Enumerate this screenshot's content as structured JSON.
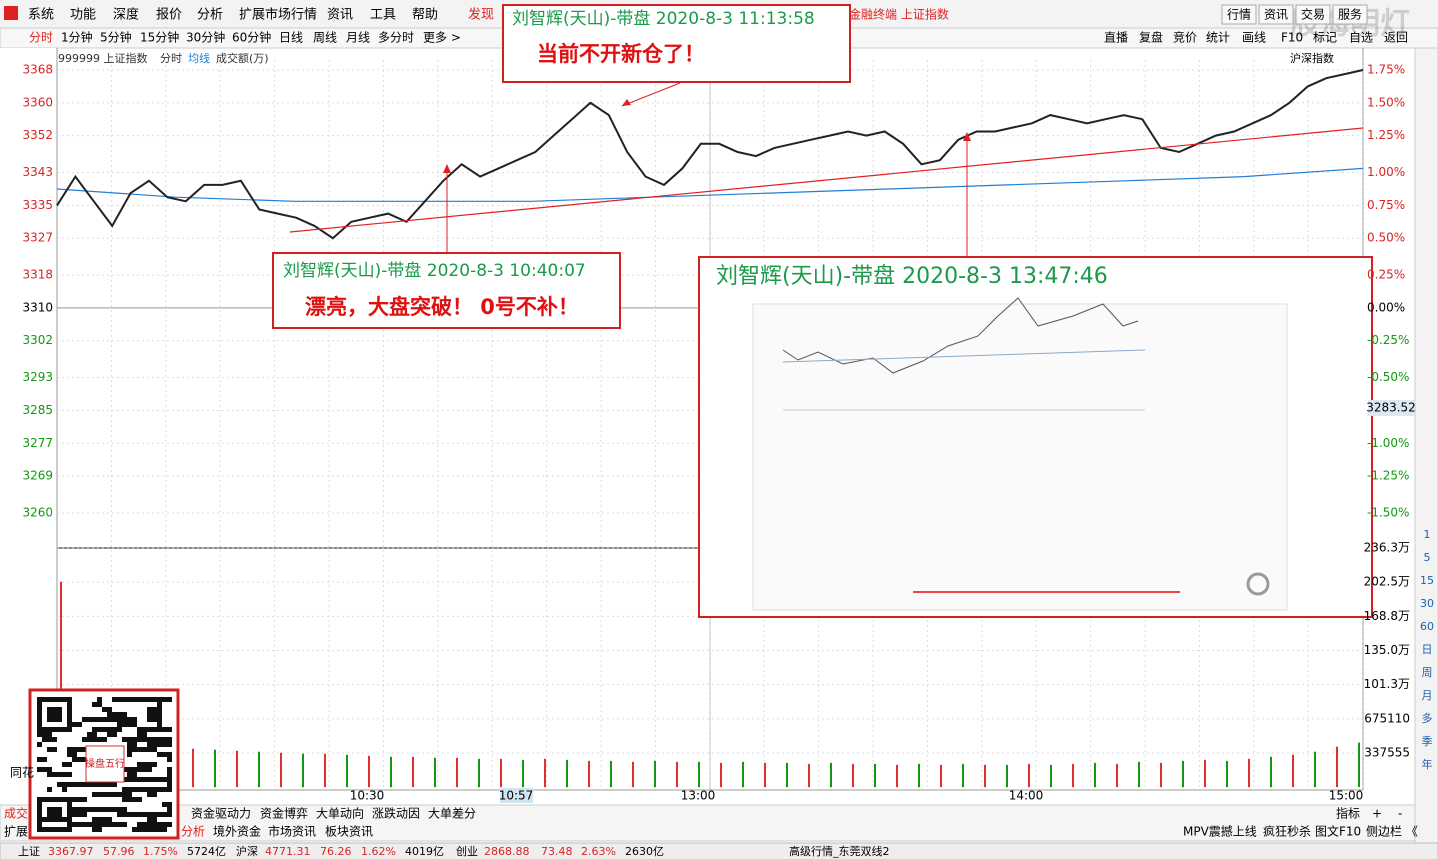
{
  "menu": {
    "items": [
      "系统",
      "功能",
      "深度",
      "报价",
      "分析",
      "扩展市场行情",
      "资讯",
      "工具",
      "帮助",
      "发现"
    ],
    "right": "金融终端 上证指数",
    "buttons": [
      "行情",
      "资讯",
      "交易",
      "服务"
    ]
  },
  "toolbar": {
    "periods": [
      "分时",
      "1分钟",
      "5分钟",
      "15分钟",
      "30分钟",
      "60分钟",
      "日线",
      "周线",
      "月线",
      "多分时",
      "更多 >"
    ],
    "tools": [
      "直播",
      "复盘",
      "竞价",
      "统计",
      "画线",
      "F10",
      "标记",
      "自选",
      "返回"
    ]
  },
  "chart": {
    "header": [
      "999999 上证指数",
      "分时",
      "均线",
      "成交额(万)"
    ],
    "index_name": "沪深指数",
    "price": {
      "type": "line",
      "yticks": [
        3368,
        3360,
        3352,
        3343,
        3335,
        3327,
        3318,
        3310,
        3302,
        3293,
        3285,
        3277,
        3269,
        3260
      ],
      "pct_labels": [
        "1.75%",
        "1.50%",
        "1.25%",
        "1.00%",
        "0.75%",
        "0.50%",
        "0.25%",
        "0.00%",
        "-0.25%",
        "-0.50%",
        "-0.75%",
        "-1.00%",
        "-1.25%",
        "-1.50%"
      ],
      "price_color": "#222222",
      "avg_color": "#1f7fd6",
      "price_values": [
        3335,
        3342,
        3336,
        3330,
        3338,
        3341,
        3337,
        3336,
        3340,
        3340,
        3341,
        3334,
        3333,
        3332,
        3330,
        3327,
        3331,
        3332,
        3333,
        3331,
        3336,
        3341,
        3345,
        3342,
        3344,
        3346,
        3348,
        3352,
        3356,
        3360,
        3357,
        3348,
        3342,
        3340,
        3344,
        3350,
        3350,
        3348,
        3347,
        3349,
        3350,
        3351,
        3352,
        3353,
        3352,
        3353,
        3350,
        3345,
        3346,
        3351,
        3353,
        3353,
        3354,
        3355,
        3357,
        3356,
        3355,
        3356,
        3357,
        3356,
        3349,
        3348,
        3350,
        3352,
        3353,
        3355,
        3357,
        3360,
        3364,
        3366,
        3367,
        3368
      ],
      "avg_values": [
        3339,
        3337,
        3336,
        3336,
        3336,
        3337,
        3338,
        3339,
        3340,
        3341,
        3342,
        3344
      ],
      "cursor_value": "3283.52"
    },
    "volume": {
      "type": "bar",
      "yticks": [
        {
          "value": 2362885,
          "label": "236.3万"
        },
        {
          "value": 2025330,
          "label": "202.5万"
        },
        {
          "value": 1687775,
          "label": "168.8万"
        },
        {
          "value": 1350220,
          "label": "135.0万"
        },
        {
          "value": 1012665,
          "label": "101.3万"
        },
        675110,
        337555
      ],
      "values": [
        2030000,
        470000,
        430000,
        410000,
        400000,
        390000,
        380000,
        370000,
        360000,
        350000,
        340000,
        330000,
        330000,
        320000,
        310000,
        300000,
        300000,
        290000,
        290000,
        280000,
        280000,
        270000,
        280000,
        270000,
        260000,
        260000,
        250000,
        260000,
        250000,
        250000,
        240000,
        250000,
        240000,
        240000,
        230000,
        240000,
        230000,
        230000,
        220000,
        230000,
        220000,
        230000,
        220000,
        220000,
        230000,
        220000,
        230000,
        240000,
        230000,
        250000,
        240000,
        260000,
        270000,
        260000,
        280000,
        300000,
        320000,
        350000,
        400000,
        440000
      ],
      "up_color": "#e03030",
      "down_color": "#119911"
    },
    "xticks": [
      "10:30",
      "10:57",
      "13:00",
      "14:00",
      "15:00"
    ],
    "side_label": "同花"
  },
  "annotations": [
    {
      "title": "刘智辉(天山)-带盘 2020-8-3 11:13:58",
      "text": "当前不开新仓了！"
    },
    {
      "title": "刘智辉(天山)-带盘 2020-8-3 10:40:07",
      "text": "漂亮，大盘突破！ 0号不补！"
    },
    {
      "title": "刘智辉(天山)-带盘 2020-8-3 13:47:46"
    }
  ],
  "tabs": {
    "row1": [
      "成交",
      "资金驱动力",
      "资金博弈",
      "大单动向",
      "涨跌动因",
      "大单差分"
    ],
    "row1_right": [
      "指标",
      "+",
      "-"
    ],
    "row2": [
      "扩展",
      "分析",
      "境外资金",
      "市场资讯",
      "板块资讯"
    ],
    "row2_right": [
      "MPV震撼上线",
      "疯狂秒杀",
      "图文F10",
      "侧边栏 《"
    ]
  },
  "status": [
    "上证",
    "3367.97",
    "57.96",
    "1.75%",
    "5724亿",
    "沪深",
    "4771.31",
    "76.26",
    "1.62%",
    "4019亿",
    "创业",
    "2868.88",
    "73.48",
    "2.63%",
    "2630亿",
    "高级行情_东莞双线2"
  ],
  "sidebar": [
    "1",
    "5",
    "15",
    "30",
    "60",
    "日",
    "周",
    "月",
    "多",
    "季",
    "年"
  ],
  "qr_text": "操盘五行",
  "watermark": "股海明灯"
}
